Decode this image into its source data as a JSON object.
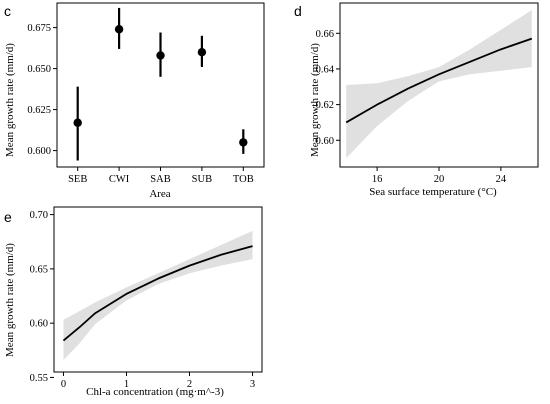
{
  "panels": {
    "c": {
      "label": "c"
    },
    "d": {
      "label": "d"
    },
    "e": {
      "label": "e"
    }
  },
  "chart_data": [
    {
      "id": "c",
      "type": "scatter",
      "xlabel": "Area",
      "ylabel": "Mean growth rate (mm/d)",
      "categories": [
        "SEB",
        "CWI",
        "SAB",
        "SUB",
        "TOB"
      ],
      "values": [
        0.617,
        0.674,
        0.658,
        0.66,
        0.605
      ],
      "lower": [
        0.594,
        0.662,
        0.645,
        0.651,
        0.598
      ],
      "upper": [
        0.639,
        0.687,
        0.672,
        0.67,
        0.613
      ],
      "ylim": [
        0.59,
        0.69
      ],
      "yticks": [
        0.6,
        0.625,
        0.65,
        0.675
      ],
      "ytick_labels": [
        "0.600",
        "0.625",
        "0.650",
        "0.675"
      ],
      "grid": false,
      "colors": {
        "points": "#000000"
      }
    },
    {
      "id": "d",
      "type": "line",
      "xlabel": "Sea surface temperature (°C)",
      "ylabel": "Mean growth rate (mm/d)",
      "x": [
        14,
        16,
        18,
        20,
        22,
        24,
        26
      ],
      "y": [
        0.61,
        0.62,
        0.629,
        0.637,
        0.644,
        0.651,
        0.657
      ],
      "lower": [
        0.59,
        0.608,
        0.622,
        0.633,
        0.637,
        0.639,
        0.641
      ],
      "upper": [
        0.631,
        0.632,
        0.636,
        0.641,
        0.651,
        0.662,
        0.673
      ],
      "xlim": [
        13.6,
        26.4
      ],
      "ylim": [
        0.585,
        0.677
      ],
      "xticks": [
        16,
        20,
        24
      ],
      "xtick_labels": [
        "16",
        "20",
        "24"
      ],
      "yticks": [
        0.6,
        0.62,
        0.64,
        0.66
      ],
      "ytick_labels": [
        "0.60",
        "0.62",
        "0.64",
        "0.66"
      ],
      "grid": false,
      "colors": {
        "line": "#000000",
        "band": "#e0e0e0"
      }
    },
    {
      "id": "e",
      "type": "line",
      "xlabel": "Chl-a concentration (mg·m^-3)",
      "ylabel": "Mean growth rate (mm/d)",
      "x": [
        0,
        0.25,
        0.5,
        1.0,
        1.5,
        2.0,
        2.5,
        3.0
      ],
      "y": [
        0.584,
        0.596,
        0.609,
        0.627,
        0.641,
        0.653,
        0.663,
        0.671
      ],
      "lower": [
        0.566,
        0.581,
        0.599,
        0.621,
        0.636,
        0.646,
        0.653,
        0.659
      ],
      "upper": [
        0.603,
        0.611,
        0.619,
        0.633,
        0.646,
        0.659,
        0.672,
        0.685
      ],
      "xlim": [
        -0.15,
        3.15
      ],
      "ylim": [
        0.555,
        0.707
      ],
      "xticks": [
        0,
        1,
        2,
        3
      ],
      "xtick_labels": [
        "0",
        "1",
        "2",
        "3"
      ],
      "yticks": [
        0.55,
        0.6,
        0.65,
        0.7
      ],
      "ytick_labels": [
        "0.55",
        "0.60",
        "0.65",
        "0.70"
      ],
      "grid": false,
      "colors": {
        "line": "#000000",
        "band": "#e0e0e0"
      }
    }
  ]
}
